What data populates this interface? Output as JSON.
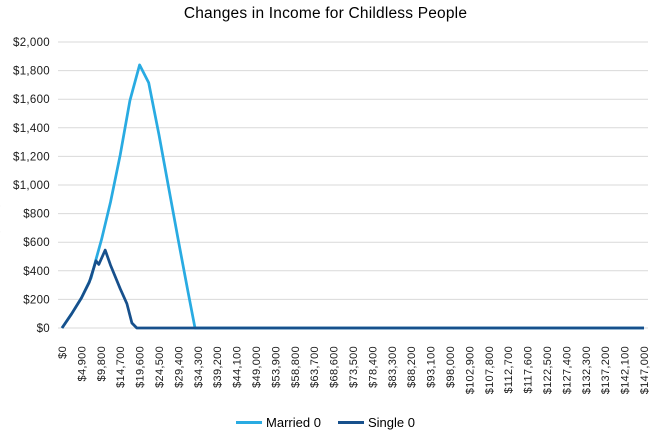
{
  "title": "Changes in Income for Childless People",
  "colors": {
    "married": "#29ABE2",
    "single": "#17508C",
    "gridline": "#D9D9D9",
    "axis_text": "#1a1a1a"
  },
  "y_axis_edge_fragment": "(",
  "legend": {
    "position": "bottom-center",
    "items": [
      {
        "label": "Married 0",
        "series": "married"
      },
      {
        "label": "Single 0",
        "series": "single"
      }
    ]
  },
  "chart_data": {
    "type": "line",
    "title": "Changes in Income for Childless People",
    "xlabel": "",
    "ylabel": "",
    "grid": "horizontal",
    "legend_position": "bottom",
    "ylim": [
      0,
      2000
    ],
    "y_tick_step": 200,
    "y_tick_labels": [
      "$2,000",
      "$1,800",
      "$1,600",
      "$1,400",
      "$1,200",
      "$1,000",
      "$800",
      "$600",
      "$400",
      "$200",
      "$0"
    ],
    "x_range": [
      0,
      147000
    ],
    "x_tick_step": 4900,
    "x_tick_labels": [
      "$0",
      "$4,900",
      "$9,800",
      "$14,700",
      "$19,600",
      "$24,500",
      "$29,400",
      "$34,300",
      "$39,200",
      "$44,100",
      "$49,000",
      "$53,900",
      "$58,800",
      "$63,700",
      "$68,600",
      "$73,500",
      "$78,400",
      "$83,300",
      "$88,200",
      "$93,100",
      "$98,000",
      "$102,900",
      "$107,800",
      "$112,700",
      "$117,600",
      "$122,500",
      "$127,400",
      "$132,300",
      "$137,200",
      "$142,100",
      "$147,000"
    ],
    "series": [
      {
        "name": "Married 0",
        "color_key": "married",
        "points": [
          [
            0,
            0
          ],
          [
            2450,
            100
          ],
          [
            4900,
            210
          ],
          [
            7350,
            350
          ],
          [
            8600,
            480
          ],
          [
            10000,
            620
          ],
          [
            12250,
            880
          ],
          [
            14700,
            1210
          ],
          [
            17150,
            1590
          ],
          [
            19600,
            1840
          ],
          [
            21900,
            1715
          ],
          [
            24500,
            1350
          ],
          [
            26950,
            980
          ],
          [
            29400,
            610
          ],
          [
            31850,
            250
          ],
          [
            33600,
            0
          ],
          [
            39200,
            0
          ],
          [
            49000,
            0
          ],
          [
            73500,
            0
          ],
          [
            98000,
            0
          ],
          [
            122500,
            0
          ],
          [
            147000,
            0
          ]
        ]
      },
      {
        "name": "Single 0",
        "color_key": "single",
        "points": [
          [
            0,
            0
          ],
          [
            2450,
            100
          ],
          [
            4900,
            210
          ],
          [
            6900,
            320
          ],
          [
            8600,
            470
          ],
          [
            9300,
            445
          ],
          [
            10900,
            545
          ],
          [
            12250,
            440
          ],
          [
            14700,
            275
          ],
          [
            16400,
            170
          ],
          [
            17650,
            35
          ],
          [
            18900,
            0
          ],
          [
            24500,
            0
          ],
          [
            49000,
            0
          ],
          [
            73500,
            0
          ],
          [
            98000,
            0
          ],
          [
            122500,
            0
          ],
          [
            147000,
            0
          ]
        ]
      }
    ]
  }
}
